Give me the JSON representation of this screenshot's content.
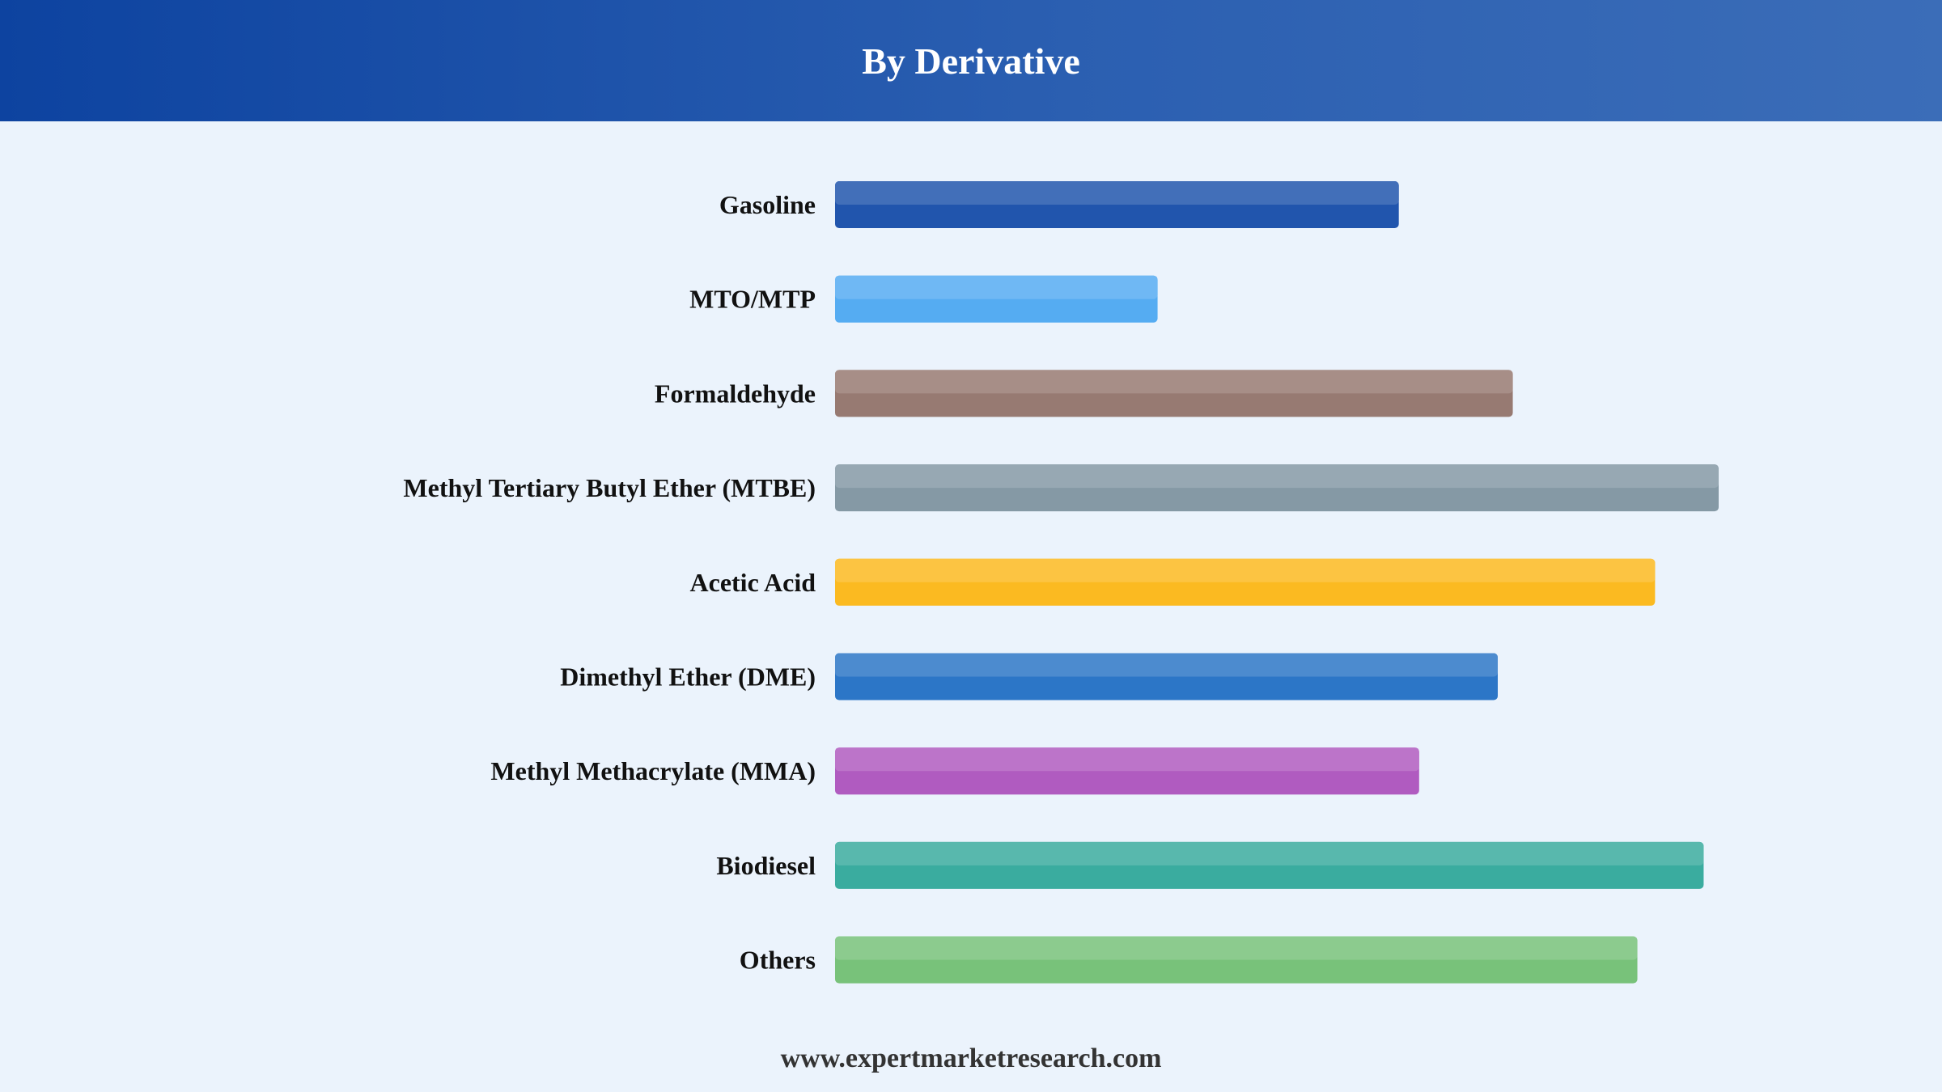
{
  "header": {
    "title": "By Derivative"
  },
  "footer": {
    "source": "www.expertmarketresearch.com"
  },
  "colors": {
    "header_start": "#0d43a0",
    "header_end": "#3b6db8",
    "background": "#ebf3fc"
  },
  "chart_data": {
    "type": "bar",
    "orientation": "horizontal",
    "title": "By Derivative",
    "xlabel": "",
    "ylabel": "",
    "xlim": [
      0,
      100
    ],
    "grid": false,
    "legend": "none",
    "categories": [
      "Gasoline",
      "MTO/MTP",
      "Formaldehyde",
      "Methyl Tertiary Butyl Ether (MTBE)",
      "Acetic Acid",
      "Dimethyl Ether (DME)",
      "Methyl Methacrylate (MMA)",
      "Biodiesel",
      "Others"
    ],
    "values": [
      63.8,
      36.5,
      76.7,
      100,
      92.8,
      75.0,
      66.1,
      98.3,
      90.8
    ],
    "bar_colors": [
      "#2155ad",
      "#55acf2",
      "#977a72",
      "#8599a5",
      "#fbba21",
      "#2c76c7",
      "#b05bc0",
      "#3aac9f",
      "#78c27a"
    ]
  }
}
